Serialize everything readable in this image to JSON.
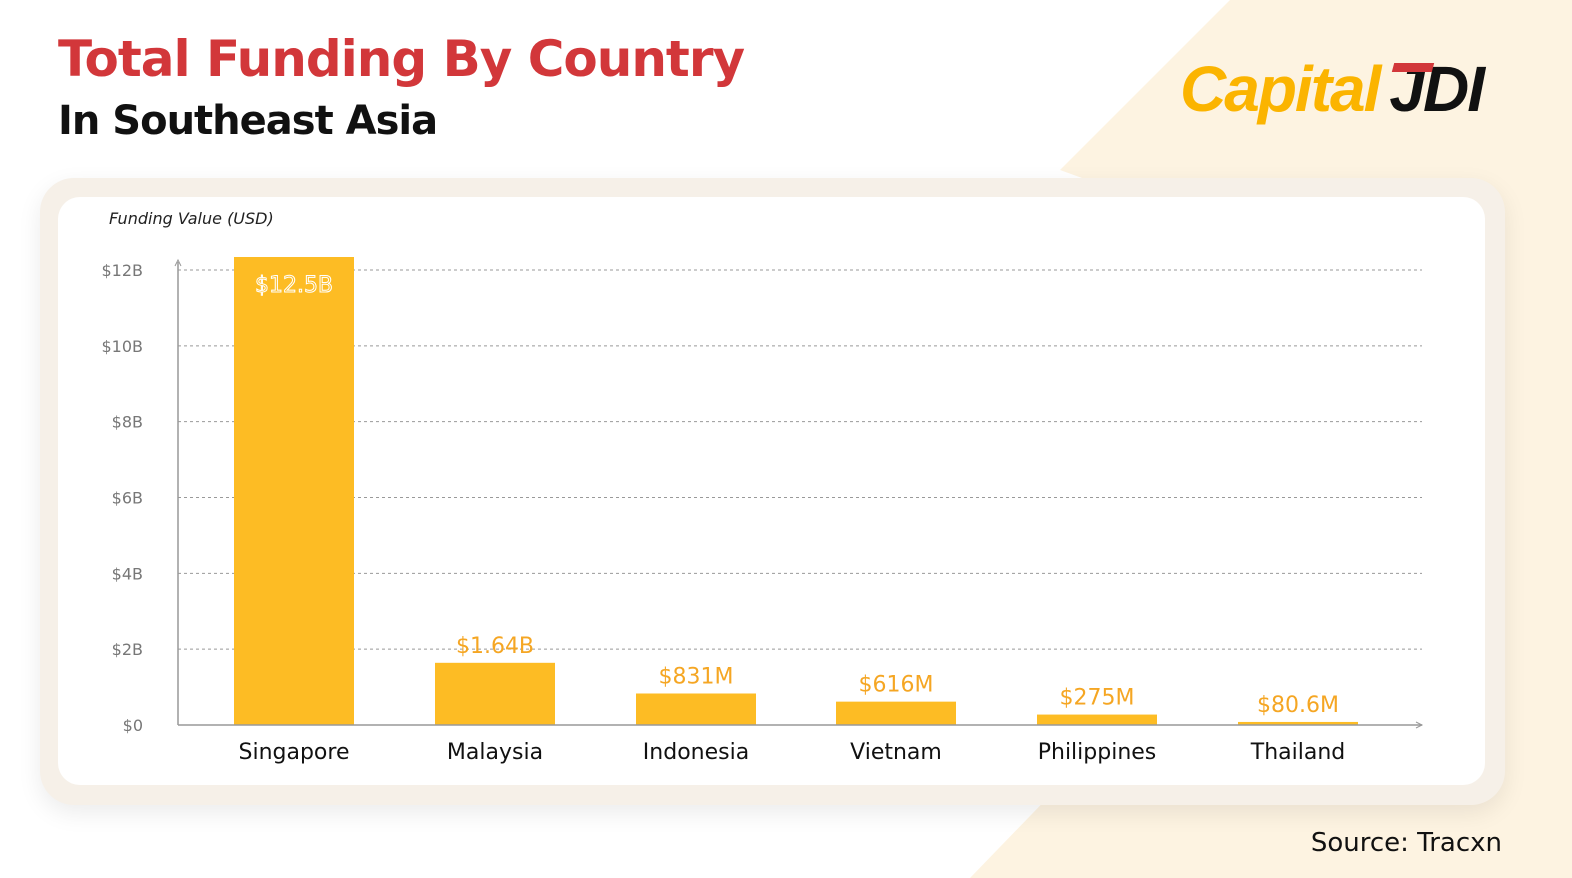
{
  "header": {
    "title": "Total Funding By Country",
    "subtitle": "In Southeast Asia"
  },
  "logo": {
    "text_main": "Capital",
    "text_mark": "JDI"
  },
  "source": "Source: Tracxn",
  "colors": {
    "title": "#d2373a",
    "bar": "#fdbc24",
    "label": "#f5a623",
    "background_accent": "#fdf3e1"
  },
  "chart_data": {
    "type": "bar",
    "ylabel": "Funding Value (USD)",
    "categories": [
      "Singapore",
      "Malaysia",
      "Indonesia",
      "Vietnam",
      "Philippines",
      "Thailand"
    ],
    "values": [
      12500000000,
      1640000000,
      831000000,
      616000000,
      275000000,
      80600000
    ],
    "data_labels": [
      "$12.5B",
      "$1.64B",
      "$831M",
      "$616M",
      "$275M",
      "$80.6M"
    ],
    "yticks": [
      0,
      2,
      4,
      6,
      8,
      10,
      12
    ],
    "ytick_labels": [
      "$0",
      "$2B",
      "$4B",
      "$6B",
      "$8B",
      "$10B",
      "$12B"
    ],
    "ylim": [
      0,
      12000000000
    ],
    "grid": true
  }
}
